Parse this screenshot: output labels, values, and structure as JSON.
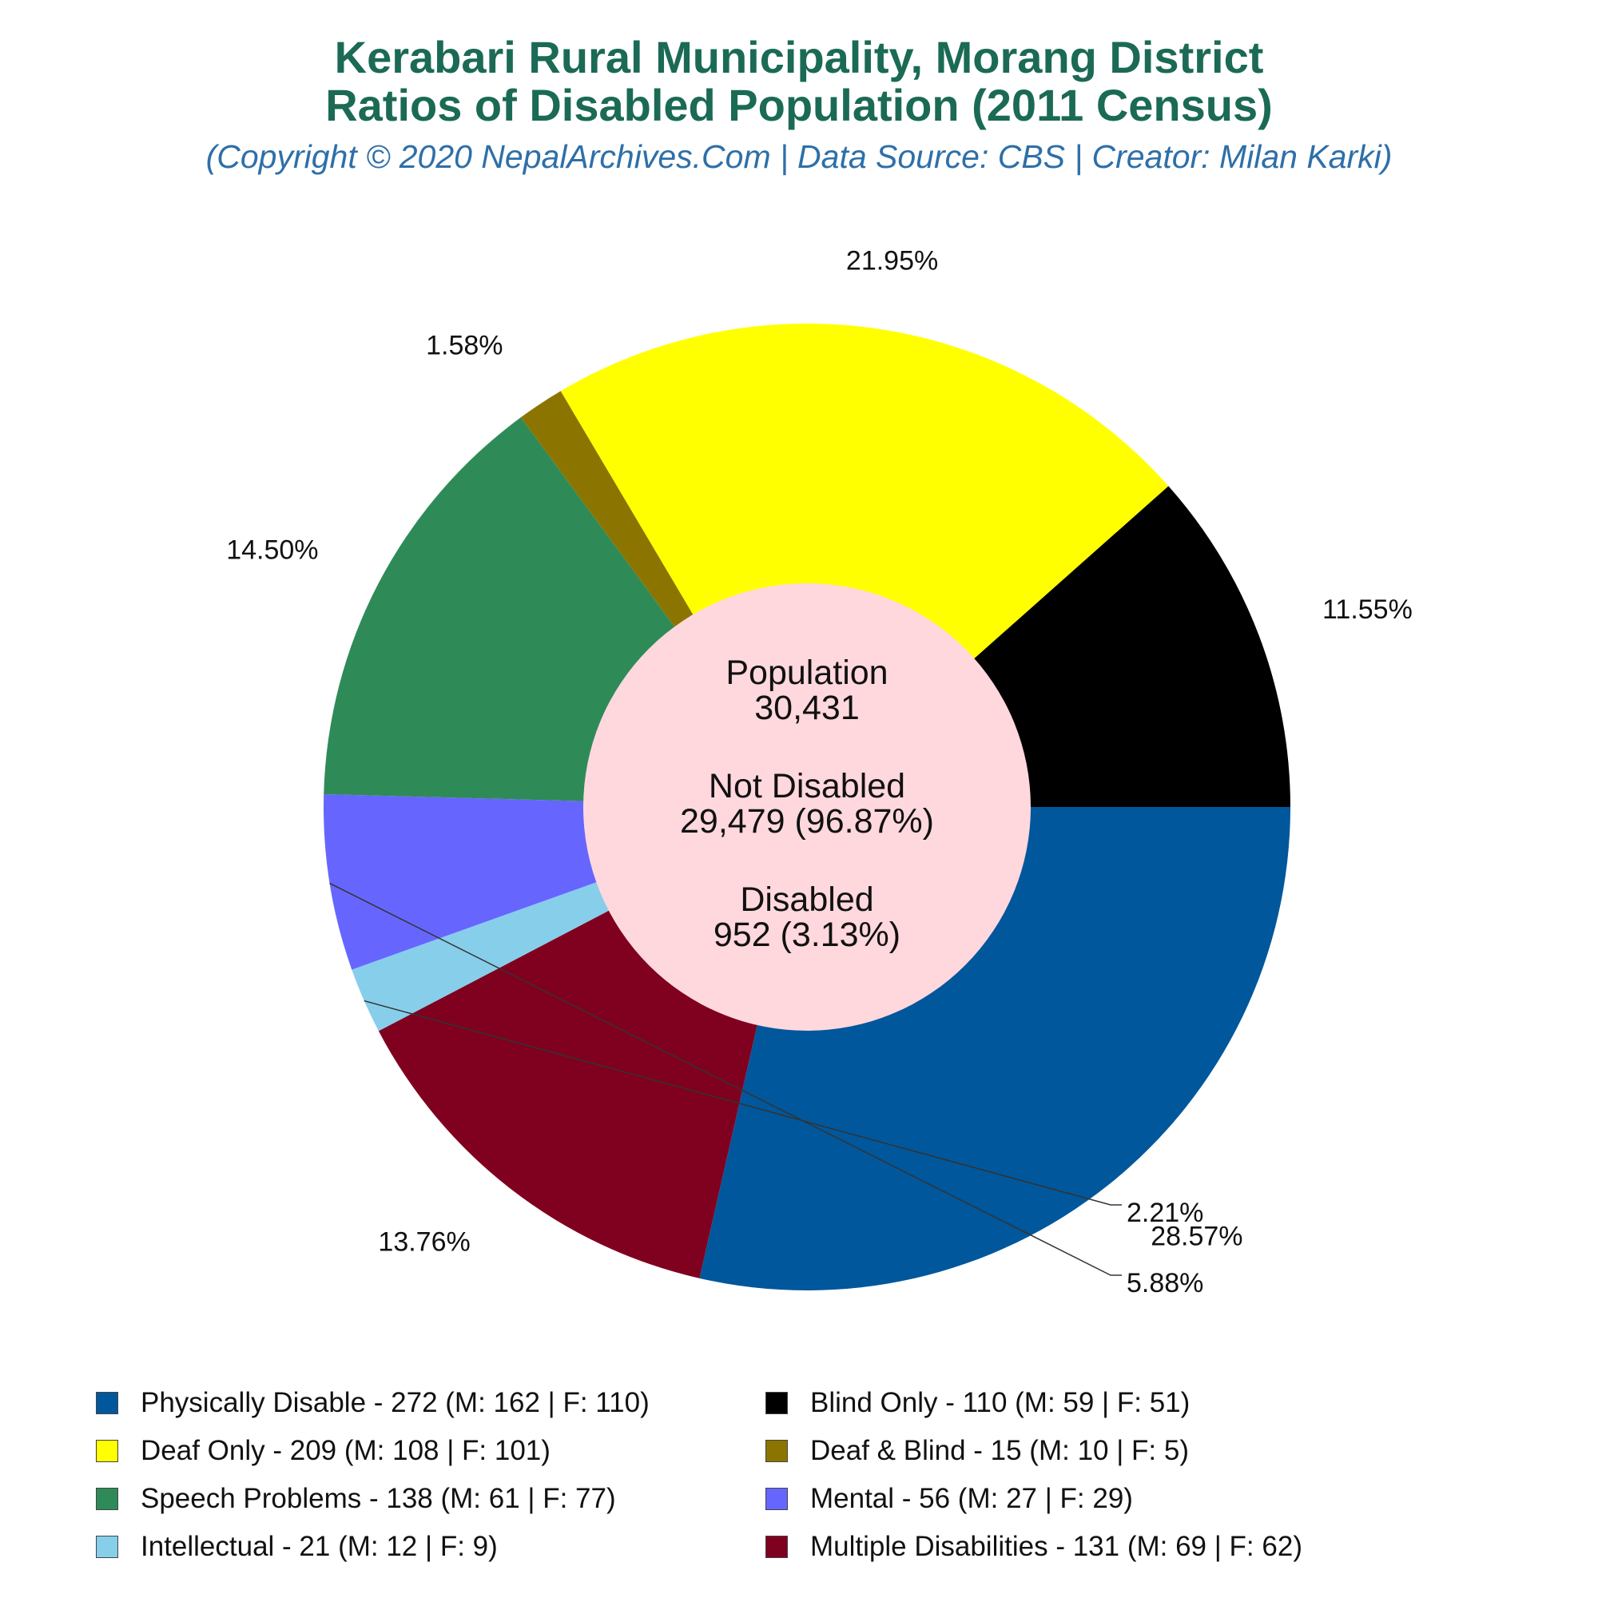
{
  "title_lines": [
    "Kerabari Rural Municipality, Morang District",
    "Ratios of Disabled Population (2011 Census)"
  ],
  "subtitle": "(Copyright © 2020 NepalArchives.Com | Data Source: CBS | Creator: Milan Karki)",
  "center": {
    "population_label": "Population",
    "population_value": "30,431",
    "not_disabled_label": "Not Disabled",
    "not_disabled_value": "29,479 (96.87%)",
    "disabled_label": "Disabled",
    "disabled_value": "952 (3.13%)"
  },
  "chart_data": {
    "type": "pie",
    "title": "Kerabari Rural Municipality, Morang District Ratios of Disabled Population (2011 Census)",
    "slices": [
      {
        "label": "Physically Disable",
        "value": 272,
        "male": 162,
        "female": 110,
        "percent_label": "28.57%",
        "color": "#01579b",
        "legend": "Physically Disable - 272 (M: 162 | F: 110)"
      },
      {
        "label": "Multiple Disabilities",
        "value": 131,
        "male": 69,
        "female": 62,
        "percent_label": "13.76%",
        "color": "#800020",
        "legend": "Multiple Disabilities - 131 (M: 69 | F: 62)"
      },
      {
        "label": "Intellectual",
        "value": 21,
        "male": 12,
        "female": 9,
        "percent_label": "2.21%",
        "color": "#87ceeb",
        "legend": "Intellectual - 21 (M: 12 | F: 9)"
      },
      {
        "label": "Mental",
        "value": 56,
        "male": 27,
        "female": 29,
        "percent_label": "5.88%",
        "color": "#6666ff",
        "legend": "Mental - 56 (M: 27 | F: 29)"
      },
      {
        "label": "Speech Problems",
        "value": 138,
        "male": 61,
        "female": 77,
        "percent_label": "14.50%",
        "color": "#2e8b57",
        "legend": "Speech Problems - 138 (M: 61 | F: 77)"
      },
      {
        "label": "Deaf & Blind",
        "value": 15,
        "male": 10,
        "female": 5,
        "percent_label": "1.58%",
        "color": "#8b7500",
        "legend": "Deaf & Blind - 15 (M: 10 | F: 5)"
      },
      {
        "label": "Deaf Only",
        "value": 209,
        "male": 108,
        "female": 101,
        "percent_label": "21.95%",
        "color": "#ffff00",
        "legend": "Deaf Only - 209 (M: 108 | F: 101)"
      },
      {
        "label": "Blind Only",
        "value": 110,
        "male": 59,
        "female": 51,
        "percent_label": "11.55%",
        "color": "#000000",
        "legend": "Blind Only - 110 (M: 59 | F: 51)"
      }
    ],
    "center_color": "#ffd8de",
    "legend_placement": "bottom",
    "legend_order": [
      "Physically Disable",
      "Blind Only",
      "Deaf Only",
      "Deaf & Blind",
      "Speech Problems",
      "Mental",
      "Intellectual",
      "Multiple Disabilities"
    ]
  }
}
